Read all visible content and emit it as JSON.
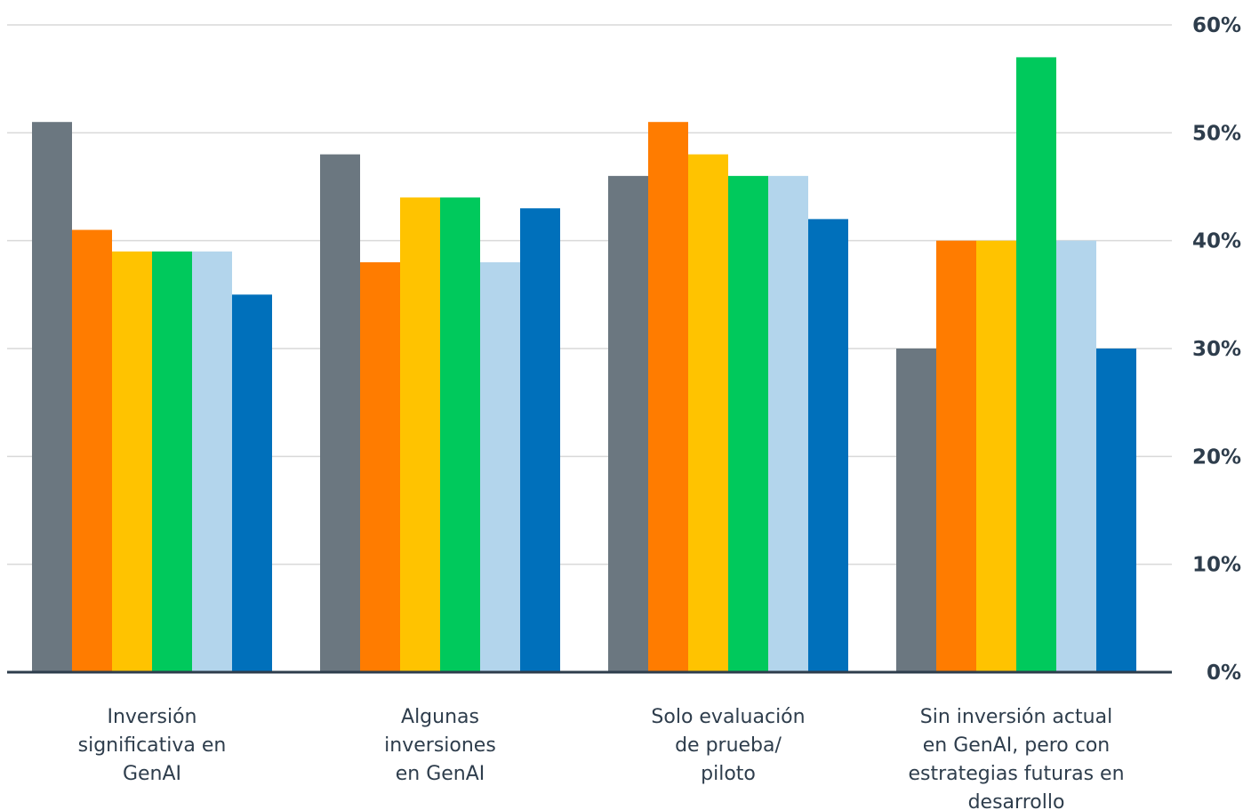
{
  "chart_data": {
    "type": "bar",
    "title": "",
    "xlabel": "",
    "ylabel": "",
    "ylim": [
      0,
      60
    ],
    "y_ticks": [
      "0%",
      "10%",
      "20%",
      "30%",
      "40%",
      "50%",
      "60%"
    ],
    "y_tick_values": [
      0,
      10,
      20,
      30,
      40,
      50,
      60
    ],
    "y_axis_side": "right",
    "grid": true,
    "legend": "none",
    "categories": [
      [
        "Inversión",
        "significativa en",
        "GenAI"
      ],
      [
        "Algunas",
        "inversiones",
        "en GenAI"
      ],
      [
        "Solo evaluación",
        "de prueba/",
        "piloto"
      ],
      [
        "Sin inversión actual",
        "en GenAI, pero con",
        "estrategias futuras en",
        "desarrollo"
      ]
    ],
    "series": [
      {
        "color": "#6b7780",
        "values": [
          51,
          48,
          46,
          30
        ]
      },
      {
        "color": "#ff7c00",
        "values": [
          41,
          38,
          51,
          40
        ]
      },
      {
        "color": "#ffc300",
        "values": [
          39,
          44,
          48,
          40
        ]
      },
      {
        "color": "#00c95c",
        "values": [
          39,
          44,
          46,
          57
        ]
      },
      {
        "color": "#b3d5ec",
        "values": [
          39,
          38,
          46,
          40
        ]
      },
      {
        "color": "#0070bb",
        "values": [
          35,
          43,
          42,
          30
        ]
      }
    ],
    "colors": {
      "grid": "#d9d9d9",
      "axis": "#2e3d4c",
      "text": "#2e3d4c"
    }
  }
}
